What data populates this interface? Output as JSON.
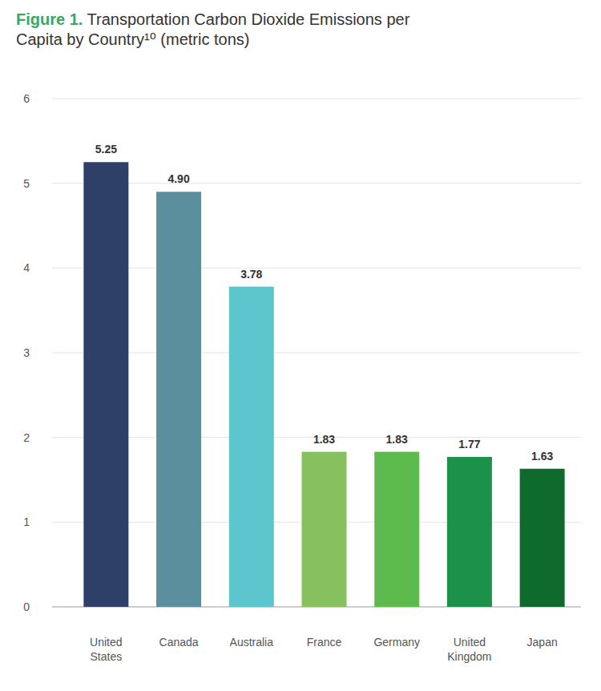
{
  "chart_data": {
    "type": "bar",
    "title": "Figure 1. Transportation Carbon Dioxide Emissions per Capita by Country¹⁰ (metric tons)",
    "categories": [
      "United States",
      "Canada",
      "Australia",
      "France",
      "Germany",
      "United Kingdom",
      "Japan"
    ],
    "values": [
      5.25,
      4.9,
      3.78,
      1.83,
      1.83,
      1.77,
      1.63
    ],
    "value_labels": [
      "5.25",
      "4.90",
      "3.78",
      "1.83",
      "1.83",
      "1.77",
      "1.63"
    ],
    "colors": [
      "#2e4068",
      "#5b8f9d",
      "#5cc5cd",
      "#86c15e",
      "#5dbb4d",
      "#1c9149",
      "#0f6a2e"
    ],
    "ylim": [
      0,
      6
    ],
    "yticks": [
      0,
      1,
      2,
      3,
      4,
      5,
      6
    ],
    "grid": true,
    "data_labels": true
  }
}
